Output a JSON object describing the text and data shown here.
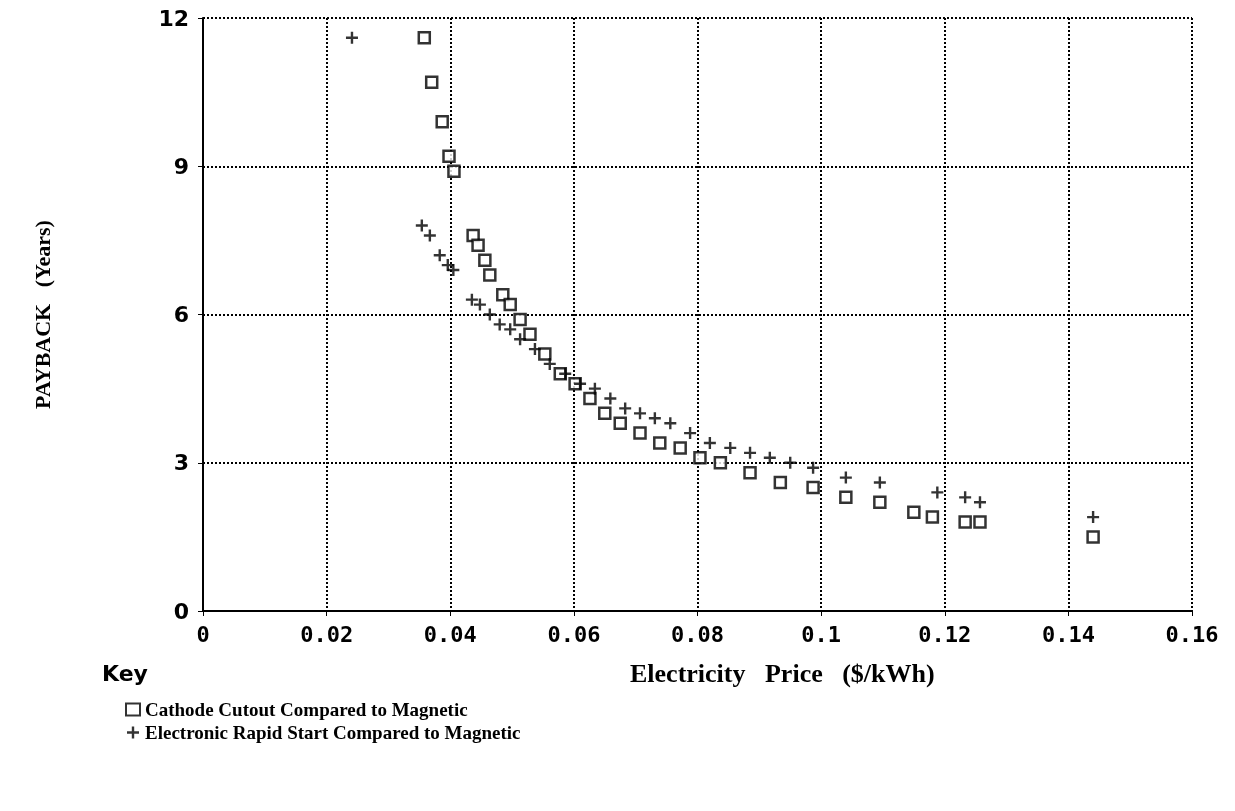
{
  "chart_data": {
    "type": "scatter",
    "xlabel": "Electricity   Price   ($/kWh)",
    "ylabel": "PAYBACK   (Years)",
    "legend_title": "Key",
    "xlim": [
      0,
      0.16
    ],
    "xticks": [
      0,
      0.02,
      0.04,
      0.06,
      0.08,
      0.1,
      0.12,
      0.14,
      0.16
    ],
    "ylim": [
      0,
      12
    ],
    "yticks": [
      0,
      3,
      6,
      9,
      12
    ],
    "grid": true,
    "legend": "bottom left",
    "series": [
      {
        "name": "Cathode Cutout Compared to Magnetic",
        "color": "#000000",
        "marker": "square",
        "x": [
          0.0358,
          0.037,
          0.0387,
          0.0398,
          0.0406,
          0.0437,
          0.0445,
          0.0456,
          0.0464,
          0.0485,
          0.0497,
          0.0513,
          0.0529,
          0.0553,
          0.0578,
          0.0602,
          0.0626,
          0.065,
          0.0675,
          0.0707,
          0.0739,
          0.0772,
          0.0804,
          0.0837,
          0.0885,
          0.0934,
          0.0987,
          0.104,
          0.1095,
          0.115,
          0.118,
          0.1233,
          0.1257,
          0.144
        ],
        "values": [
          11.6,
          10.7,
          9.9,
          9.2,
          8.9,
          7.6,
          7.4,
          7.1,
          6.8,
          6.4,
          6.2,
          5.9,
          5.6,
          5.2,
          4.8,
          4.6,
          4.3,
          4.0,
          3.8,
          3.6,
          3.4,
          3.3,
          3.1,
          3.0,
          2.8,
          2.6,
          2.5,
          2.3,
          2.2,
          2.0,
          1.9,
          1.8,
          1.8,
          1.5
        ]
      },
      {
        "name": "Electronic Rapid Start Compared to Magnetic",
        "color": "#000000",
        "marker": "cross",
        "x": [
          0.0241,
          0.0354,
          0.0367,
          0.0383,
          0.0396,
          0.0405,
          0.0435,
          0.0448,
          0.0464,
          0.048,
          0.0497,
          0.0513,
          0.0537,
          0.0561,
          0.0586,
          0.061,
          0.0634,
          0.0659,
          0.0683,
          0.0707,
          0.0731,
          0.0756,
          0.0788,
          0.082,
          0.0853,
          0.0885,
          0.0917,
          0.095,
          0.0987,
          0.104,
          0.1095,
          0.1188,
          0.1233,
          0.1257,
          0.144
        ],
        "values": [
          11.6,
          7.8,
          7.6,
          7.2,
          7.0,
          6.9,
          6.3,
          6.2,
          6.0,
          5.8,
          5.7,
          5.5,
          5.3,
          5.0,
          4.8,
          4.6,
          4.5,
          4.3,
          4.1,
          4.0,
          3.9,
          3.8,
          3.6,
          3.4,
          3.3,
          3.2,
          3.1,
          3.0,
          2.9,
          2.7,
          2.6,
          2.4,
          2.3,
          2.2,
          1.9
        ]
      }
    ]
  }
}
